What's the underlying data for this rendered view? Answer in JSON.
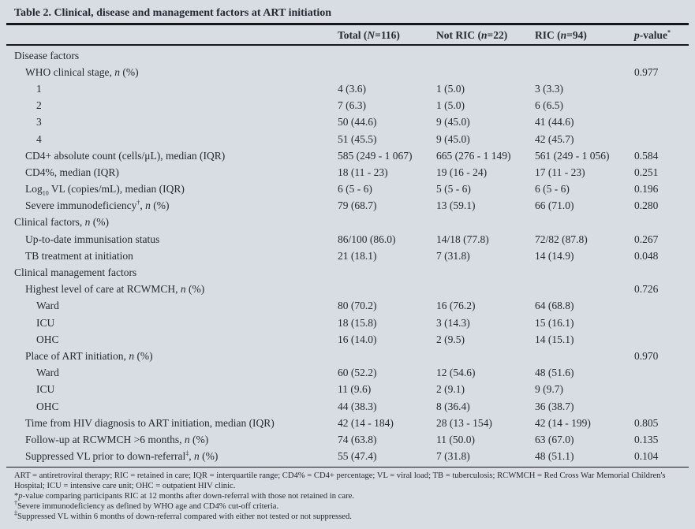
{
  "title": "Table 2. Clinical, disease and management factors at ART initiation",
  "colors": {
    "background": "#d8dce3",
    "text": "#252a33",
    "rule": "#15171c"
  },
  "table": {
    "columns": [
      "Total ([i]N[/i]=116)",
      "Not RIC ([i]n[/i]=22)",
      "RIC ([i]n[/i]=94)",
      "[i]p[/i]-value[sup]*[/sup]"
    ],
    "rows": [
      {
        "label": "Disease factors",
        "indent": 0,
        "total": "",
        "not_ric": "",
        "ric": "",
        "p": ""
      },
      {
        "label": "WHO clinical stage, [i]n[/i] (%)",
        "indent": 1,
        "total": "",
        "not_ric": "",
        "ric": "",
        "p": "0.977"
      },
      {
        "label": "1",
        "indent": 2,
        "total": "4 (3.6)",
        "not_ric": "1 (5.0)",
        "ric": "3 (3.3)",
        "p": ""
      },
      {
        "label": "2",
        "indent": 2,
        "total": "7 (6.3)",
        "not_ric": "1 (5.0)",
        "ric": "6 (6.5)",
        "p": ""
      },
      {
        "label": "3",
        "indent": 2,
        "total": "50 (44.6)",
        "not_ric": "9 (45.0)",
        "ric": "41 (44.6)",
        "p": ""
      },
      {
        "label": "4",
        "indent": 2,
        "total": "51 (45.5)",
        "not_ric": "9 (45.0)",
        "ric": "42 (45.7)",
        "p": ""
      },
      {
        "label": "CD4+ absolute count (cells/μL), median (IQR)",
        "indent": 1,
        "total": "585 (249 - 1 067)",
        "not_ric": "665 (276 - 1 149)",
        "ric": "561 (249 - 1 056)",
        "p": "0.584"
      },
      {
        "label": "CD4%, median (IQR)",
        "indent": 1,
        "total": "18 (11 - 23)",
        "not_ric": "19 (16 - 24)",
        "ric": "17 (11 - 23)",
        "p": "0.251"
      },
      {
        "label": "Log[sub]10[/sub] VL (copies/mL), median (IQR)",
        "indent": 1,
        "total": "6 (5 - 6)",
        "not_ric": "5 (5 - 6)",
        "ric": "6 (5 - 6)",
        "p": "0.196"
      },
      {
        "label": "Severe immunodeficiency[sup]†[/sup], [i]n[/i] (%)",
        "indent": 1,
        "total": "79 (68.7)",
        "not_ric": "13 (59.1)",
        "ric": "66 (71.0)",
        "p": "0.280"
      },
      {
        "label": "Clinical factors, [i]n[/i] (%)",
        "indent": 0,
        "total": "",
        "not_ric": "",
        "ric": "",
        "p": ""
      },
      {
        "label": "Up-to-date immunisation status",
        "indent": 1,
        "total": "86/100 (86.0)",
        "not_ric": "14/18 (77.8)",
        "ric": "72/82 (87.8)",
        "p": "0.267"
      },
      {
        "label": "TB treatment at initiation",
        "indent": 1,
        "total": "21 (18.1)",
        "not_ric": "7 (31.8)",
        "ric": "14 (14.9)",
        "p": "0.048"
      },
      {
        "label": "Clinical management factors",
        "indent": 0,
        "total": "",
        "not_ric": "",
        "ric": "",
        "p": ""
      },
      {
        "label": "Highest level of care at RCWMCH, [i]n[/i] (%)",
        "indent": 1,
        "total": "",
        "not_ric": "",
        "ric": "",
        "p": "0.726"
      },
      {
        "label": "Ward",
        "indent": 2,
        "total": "80 (70.2)",
        "not_ric": "16 (76.2)",
        "ric": "64 (68.8)",
        "p": ""
      },
      {
        "label": "ICU",
        "indent": 2,
        "total": "18 (15.8)",
        "not_ric": "3 (14.3)",
        "ric": "15 (16.1)",
        "p": ""
      },
      {
        "label": "OHC",
        "indent": 2,
        "total": "16 (14.0)",
        "not_ric": "2 (9.5)",
        "ric": "14 (15.1)",
        "p": ""
      },
      {
        "label": "Place of ART initiation, [i]n[/i] (%)",
        "indent": 1,
        "total": "",
        "not_ric": "",
        "ric": "",
        "p": "0.970"
      },
      {
        "label": "Ward",
        "indent": 2,
        "total": "60 (52.2)",
        "not_ric": "12 (54.6)",
        "ric": "48 (51.6)",
        "p": ""
      },
      {
        "label": "ICU",
        "indent": 2,
        "total": "11 (9.6)",
        "not_ric": "2 (9.1)",
        "ric": "9 (9.7)",
        "p": ""
      },
      {
        "label": "OHC",
        "indent": 2,
        "total": "44 (38.3)",
        "not_ric": "8 (36.4)",
        "ric": "36 (38.7)",
        "p": ""
      },
      {
        "label": "Time from HIV diagnosis to ART initiation, median (IQR)",
        "indent": 1,
        "total": "42 (14 - 184)",
        "not_ric": "28 (13 - 154)",
        "ric": "42 (14 - 199)",
        "p": "0.805"
      },
      {
        "label": "Follow-up at RCWMCH >6 months, [i]n[/i] (%)",
        "indent": 1,
        "total": "74 (63.8)",
        "not_ric": "11 (50.0)",
        "ric": "63 (67.0)",
        "p": "0.135"
      },
      {
        "label": "Suppressed VL prior to down-referral[sup]‡[/sup], [i]n[/i] (%)",
        "indent": 1,
        "total": "55 (47.4)",
        "not_ric": "7 (31.8)",
        "ric": "48 (51.1)",
        "p": "0.104"
      }
    ]
  },
  "footnotes": [
    "ART = antiretroviral therapy; RIC = retained in care; IQR = interquartile range; CD4% = CD4+ percentage; VL = viral load; TB = tuberculosis; RCWMCH = Red Cross War Memorial Children's Hospital; ICU = intensive care unit; OHC = outpatient HIV clinic.",
    "*[i]p[/i]-value comparing participants RIC at 12 months after down-referral with those not retained in care.",
    "[sup]†[/sup]Severe immunodeficiency as defined by WHO age and CD4% cut-off criteria.",
    "[sup]‡[/sup]Suppressed VL within 6 months of down-referral compared with either not tested or not suppressed."
  ]
}
